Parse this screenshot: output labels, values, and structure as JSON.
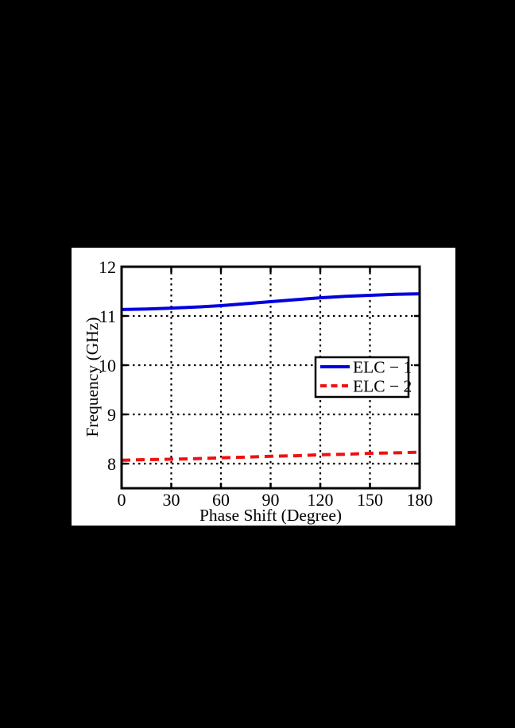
{
  "figure": {
    "page_background": "#000000",
    "panel_background": "#ffffff",
    "axis_color": "#000000",
    "grid_style": "dotted"
  },
  "chart_data": {
    "type": "line",
    "title": "",
    "xlabel": "Phase Shift (Degree)",
    "ylabel": "Frequency (GHz)",
    "xlim": [
      0,
      180
    ],
    "ylim": [
      7.5,
      12
    ],
    "xticks": [
      0,
      30,
      60,
      90,
      120,
      150,
      180
    ],
    "yticks": [
      8,
      9,
      10,
      11,
      12
    ],
    "grid": "on",
    "legend_position": "middle-right",
    "x": [
      0,
      15,
      30,
      45,
      60,
      75,
      90,
      105,
      120,
      135,
      150,
      165,
      180
    ],
    "series": [
      {
        "name": "ELC − 1",
        "color": "#0000E0",
        "style": "solid",
        "values": [
          11.13,
          11.14,
          11.16,
          11.18,
          11.21,
          11.25,
          11.29,
          11.33,
          11.37,
          11.4,
          11.42,
          11.44,
          11.45
        ]
      },
      {
        "name": "ELC − 2",
        "color": "#F01010",
        "style": "dashed",
        "values": [
          8.07,
          8.08,
          8.09,
          8.1,
          8.12,
          8.13,
          8.15,
          8.16,
          8.18,
          8.19,
          8.21,
          8.22,
          8.23
        ]
      }
    ]
  }
}
